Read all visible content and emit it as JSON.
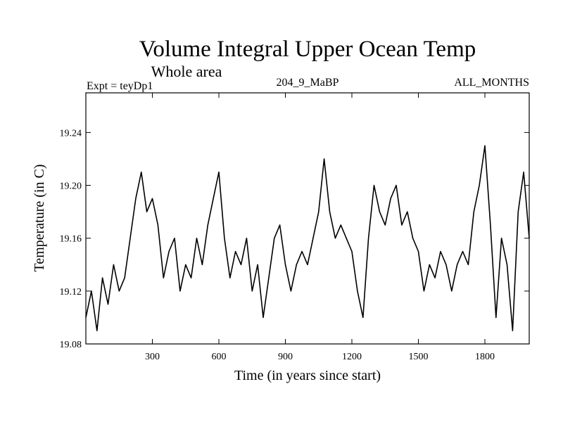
{
  "chart_data": {
    "type": "line",
    "title": "Volume Integral Upper Ocean Temp",
    "subtitle": "Whole area",
    "experiment": "Expt = teyDp1",
    "run_label": "204_9_MaBP",
    "months_label": "ALL_MONTHS",
    "xlabel": "Time (in years since start)",
    "ylabel": "Temperature (in C)",
    "xlim": [
      0,
      2000
    ],
    "ylim": [
      19.08,
      19.27
    ],
    "xticks": [
      300,
      600,
      900,
      1200,
      1500,
      1800
    ],
    "xtick_labels": [
      "300",
      "600",
      "900",
      "1200",
      "1500",
      "1800"
    ],
    "yticks": [
      19.08,
      19.12,
      19.16,
      19.2,
      19.24
    ],
    "ytick_labels": [
      "19.08",
      "19.12",
      "19.16",
      "19.20",
      "19.24"
    ],
    "grid": false,
    "series": [
      {
        "name": "Volume Integral Upper Ocean Temp",
        "color": "#000000",
        "x": [
          0,
          25,
          50,
          75,
          100,
          125,
          150,
          175,
          200,
          225,
          250,
          275,
          300,
          325,
          350,
          375,
          400,
          425,
          450,
          475,
          500,
          525,
          550,
          575,
          600,
          625,
          650,
          675,
          700,
          725,
          750,
          775,
          800,
          825,
          850,
          875,
          900,
          925,
          950,
          975,
          1000,
          1025,
          1050,
          1075,
          1100,
          1125,
          1150,
          1175,
          1200,
          1225,
          1250,
          1275,
          1300,
          1325,
          1350,
          1375,
          1400,
          1425,
          1450,
          1475,
          1500,
          1525,
          1550,
          1575,
          1600,
          1625,
          1650,
          1675,
          1700,
          1725,
          1750,
          1775,
          1800,
          1825,
          1850,
          1875,
          1900,
          1925,
          1950,
          1975,
          2000
        ],
        "values": [
          19.1,
          19.12,
          19.09,
          19.13,
          19.11,
          19.14,
          19.12,
          19.13,
          19.16,
          19.19,
          19.21,
          19.18,
          19.19,
          19.17,
          19.13,
          19.15,
          19.16,
          19.12,
          19.14,
          19.13,
          19.16,
          19.14,
          19.17,
          19.19,
          19.21,
          19.16,
          19.13,
          19.15,
          19.14,
          19.16,
          19.12,
          19.14,
          19.1,
          19.13,
          19.16,
          19.17,
          19.14,
          19.12,
          19.14,
          19.15,
          19.14,
          19.16,
          19.18,
          19.22,
          19.18,
          19.16,
          19.17,
          19.16,
          19.15,
          19.12,
          19.1,
          19.16,
          19.2,
          19.18,
          19.17,
          19.19,
          19.2,
          19.17,
          19.18,
          19.16,
          19.15,
          19.12,
          19.14,
          19.13,
          19.15,
          19.14,
          19.12,
          19.14,
          19.15,
          19.14,
          19.18,
          19.2,
          19.23,
          19.17,
          19.1,
          19.16,
          19.14,
          19.09,
          19.18,
          19.21,
          19.16
        ]
      }
    ]
  }
}
